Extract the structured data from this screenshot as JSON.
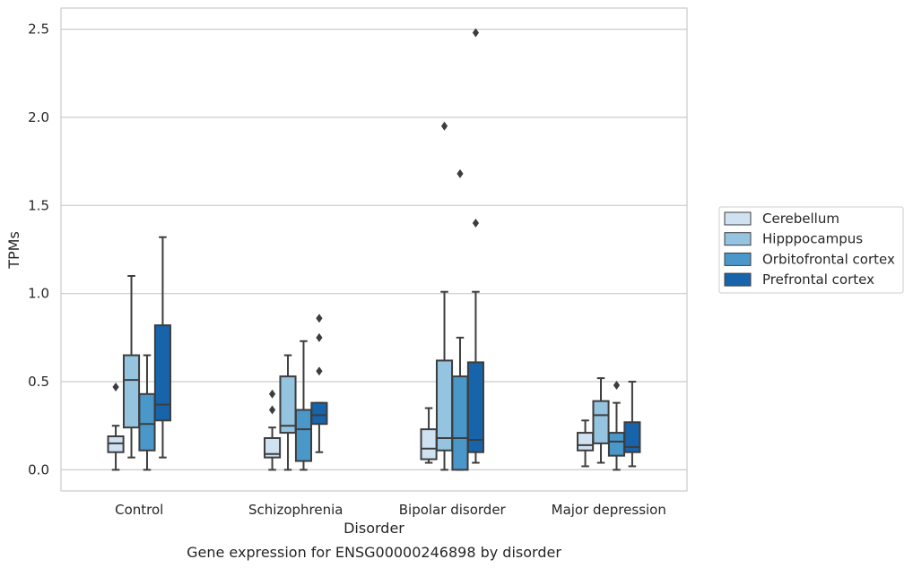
{
  "chart_data": {
    "type": "box",
    "caption": "Gene expression for ENSG00000246898 by disorder",
    "xlabel": "Disorder",
    "ylabel": "TPMs",
    "ylim": [
      -0.12,
      2.62
    ],
    "yticks": [
      "0.0",
      "0.5",
      "1.0",
      "1.5",
      "2.0",
      "2.5"
    ],
    "grid": "horizontal",
    "legend_position": "right",
    "categories": [
      "Control",
      "Schizophrenia",
      "Bipolar disorder",
      "Major depression"
    ],
    "series": [
      {
        "name": "Cerebellum",
        "color": "#d0e1f2",
        "boxes": [
          {
            "whislo": 0.0,
            "q1": 0.1,
            "med": 0.15,
            "q3": 0.19,
            "whishi": 0.25,
            "fliers": [
              0.47
            ]
          },
          {
            "whislo": 0.0,
            "q1": 0.07,
            "med": 0.09,
            "q3": 0.18,
            "whishi": 0.24,
            "fliers": [
              0.34,
              0.43
            ]
          },
          {
            "whislo": 0.04,
            "q1": 0.06,
            "med": 0.12,
            "q3": 0.23,
            "whishi": 0.35,
            "fliers": []
          },
          {
            "whislo": 0.02,
            "q1": 0.11,
            "med": 0.14,
            "q3": 0.21,
            "whishi": 0.28,
            "fliers": []
          }
        ]
      },
      {
        "name": "Hipppocampus",
        "color": "#94c4df",
        "boxes": [
          {
            "whislo": 0.07,
            "q1": 0.24,
            "med": 0.51,
            "q3": 0.65,
            "whishi": 1.1,
            "fliers": []
          },
          {
            "whislo": 0.0,
            "q1": 0.21,
            "med": 0.25,
            "q3": 0.53,
            "whishi": 0.65,
            "fliers": []
          },
          {
            "whislo": 0.0,
            "q1": 0.11,
            "med": 0.18,
            "q3": 0.62,
            "whishi": 1.01,
            "fliers": [
              1.95
            ]
          },
          {
            "whislo": 0.04,
            "q1": 0.15,
            "med": 0.31,
            "q3": 0.39,
            "whishi": 0.52,
            "fliers": []
          }
        ]
      },
      {
        "name": "Orbitofrontal cortex",
        "color": "#4a98c9",
        "boxes": [
          {
            "whislo": 0.0,
            "q1": 0.11,
            "med": 0.26,
            "q3": 0.43,
            "whishi": 0.65,
            "fliers": []
          },
          {
            "whislo": 0.0,
            "q1": 0.05,
            "med": 0.23,
            "q3": 0.34,
            "whishi": 0.73,
            "fliers": []
          },
          {
            "whislo": 0.0,
            "q1": 0.0,
            "med": 0.18,
            "q3": 0.53,
            "whishi": 0.75,
            "fliers": [
              1.68
            ]
          },
          {
            "whislo": 0.0,
            "q1": 0.08,
            "med": 0.16,
            "q3": 0.21,
            "whishi": 0.38,
            "fliers": [
              0.48
            ]
          }
        ]
      },
      {
        "name": "Prefrontal cortex",
        "color": "#1764ab",
        "boxes": [
          {
            "whislo": 0.07,
            "q1": 0.28,
            "med": 0.37,
            "q3": 0.82,
            "whishi": 1.32,
            "fliers": []
          },
          {
            "whislo": 0.1,
            "q1": 0.26,
            "med": 0.31,
            "q3": 0.38,
            "whishi": 0.38,
            "fliers": [
              0.56,
              0.75,
              0.86
            ]
          },
          {
            "whislo": 0.04,
            "q1": 0.1,
            "med": 0.17,
            "q3": 0.61,
            "whishi": 1.01,
            "fliers": [
              1.4,
              2.48
            ]
          },
          {
            "whislo": 0.02,
            "q1": 0.1,
            "med": 0.13,
            "q3": 0.27,
            "whishi": 0.5,
            "fliers": []
          }
        ]
      }
    ]
  }
}
